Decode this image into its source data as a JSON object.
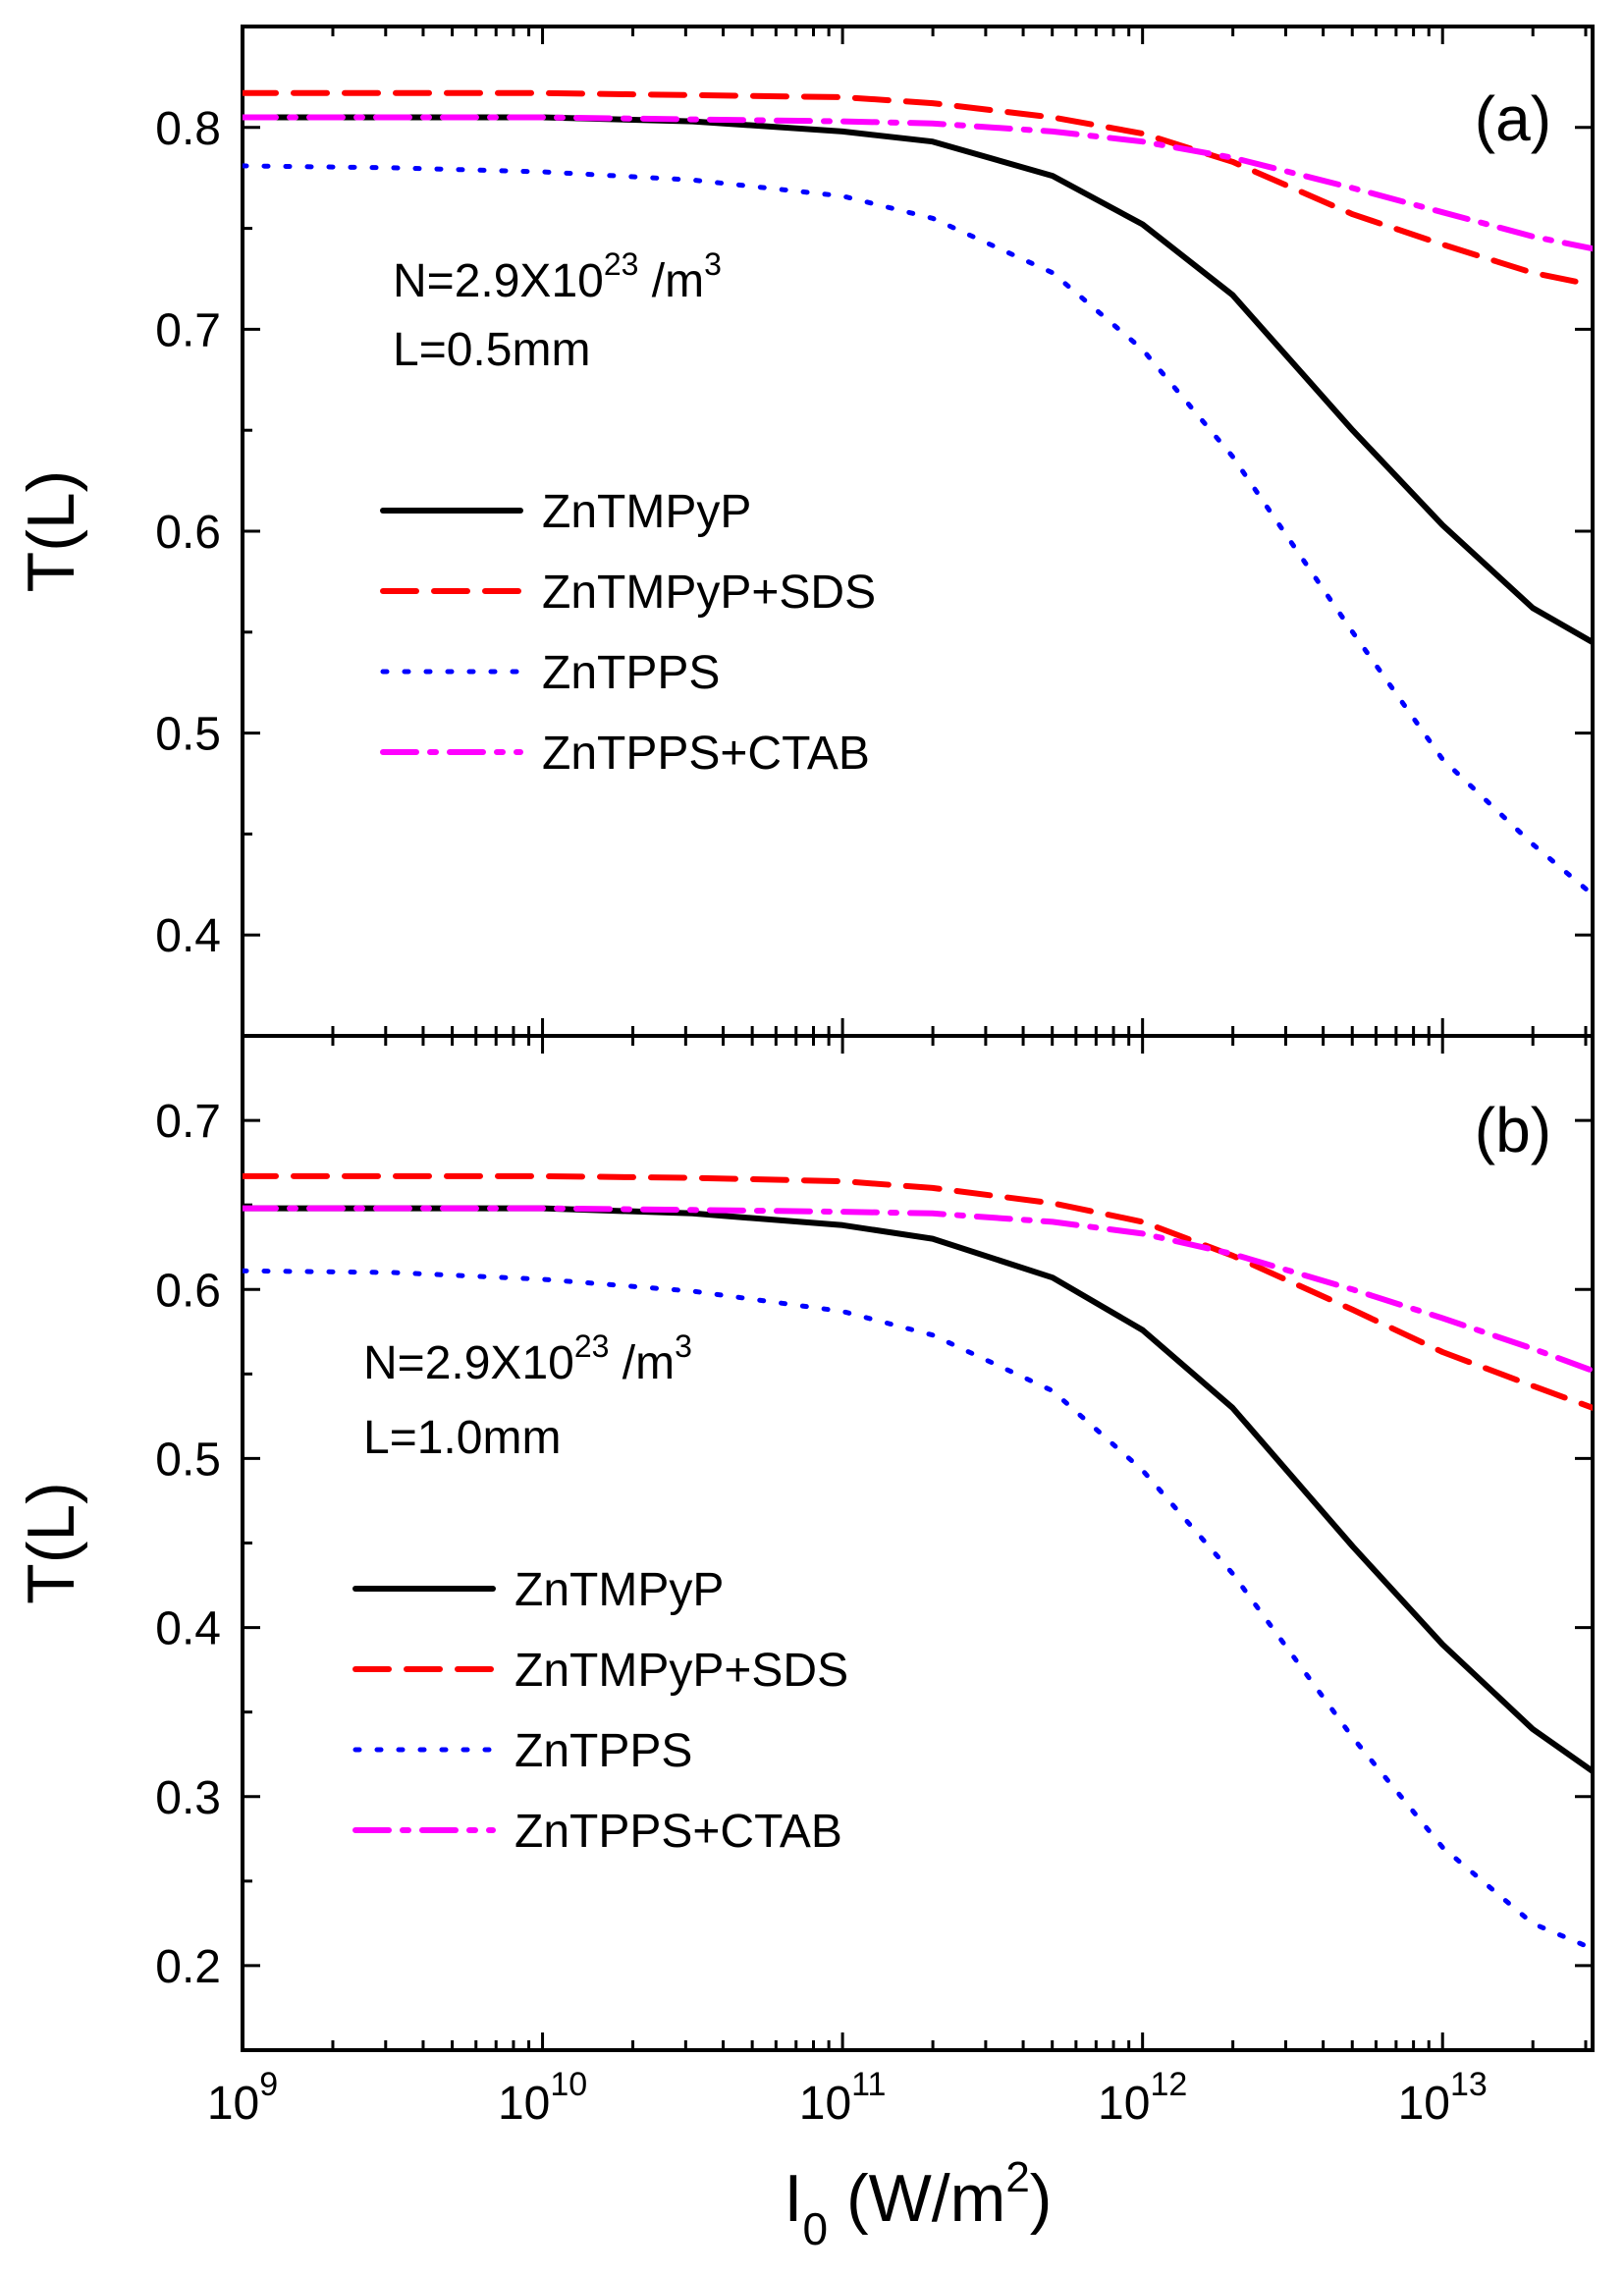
{
  "chart_data": {
    "type": "line",
    "xscale": "log",
    "xlabel": "I",
    "xlabel_sub": "0",
    "xlabel_unit_prefix": " (W/m",
    "xlabel_unit_sup": "2",
    "xlabel_unit_suffix": ")",
    "xlim_log10": [
      9,
      13.5
    ],
    "x_ticks": [
      {
        "base": "10",
        "exp": "9",
        "log10": 9
      },
      {
        "base": "10",
        "exp": "10",
        "log10": 10
      },
      {
        "base": "10",
        "exp": "11",
        "log10": 11
      },
      {
        "base": "10",
        "exp": "12",
        "log10": 12
      },
      {
        "base": "10",
        "exp": "13",
        "log10": 13
      }
    ],
    "series_styles": [
      {
        "name": "ZnTMPyP",
        "color": "#000000",
        "dash": "solid"
      },
      {
        "name": "ZnTMPyP+SDS",
        "color": "#ff0000",
        "dash": "dashed"
      },
      {
        "name": "ZnTPPS",
        "color": "#0000ff",
        "dash": "dotted"
      },
      {
        "name": "ZnTPPS+CTAB",
        "color": "#ff00ff",
        "dash": "dashdot"
      }
    ],
    "x_log10": [
      9,
      9.5,
      10,
      10.5,
      11,
      11.3,
      11.7,
      12,
      12.3,
      12.7,
      13,
      13.3,
      13.5
    ],
    "panels": [
      {
        "label": "(a)",
        "ylabel": "T(L)",
        "ylim": [
          0.35,
          0.85
        ],
        "yticks": [
          "0.4",
          "0.5",
          "0.6",
          "0.7",
          "0.8"
        ],
        "annotation_n_prefix": "N=2.9X10",
        "annotation_n_sup": "23",
        "annotation_n_unit": " /m",
        "annotation_n_unit_sup": "3",
        "annotation_l": "L=0.5mm",
        "series": [
          {
            "name": "ZnTMPyP",
            "values": [
              0.805,
              0.805,
              0.805,
              0.803,
              0.798,
              0.793,
              0.776,
              0.752,
              0.717,
              0.65,
              0.603,
              0.562,
              0.545
            ]
          },
          {
            "name": "ZnTMPyP+SDS",
            "values": [
              0.817,
              0.817,
              0.817,
              0.816,
              0.815,
              0.812,
              0.805,
              0.797,
              0.783,
              0.757,
              0.742,
              0.728,
              0.722
            ]
          },
          {
            "name": "ZnTPPS",
            "values": [
              0.781,
              0.78,
              0.778,
              0.774,
              0.766,
              0.755,
              0.728,
              0.69,
              0.637,
              0.55,
              0.487,
              0.445,
              0.42
            ]
          },
          {
            "name": "ZnTPPS+CTAB",
            "values": [
              0.805,
              0.805,
              0.805,
              0.804,
              0.803,
              0.802,
              0.798,
              0.793,
              0.785,
              0.77,
              0.758,
              0.746,
              0.74
            ]
          }
        ]
      },
      {
        "label": "(b)",
        "ylabel": "T(L)",
        "ylim": [
          0.15,
          0.75
        ],
        "yticks": [
          "0.2",
          "0.3",
          "0.4",
          "0.5",
          "0.6",
          "0.7"
        ],
        "annotation_n_prefix": "N=2.9X10",
        "annotation_n_sup": "23",
        "annotation_n_unit": " /m",
        "annotation_n_unit_sup": "3",
        "annotation_l": "L=1.0mm",
        "series": [
          {
            "name": "ZnTMPyP",
            "values": [
              0.648,
              0.648,
              0.648,
              0.645,
              0.638,
              0.63,
              0.607,
              0.576,
              0.53,
              0.448,
              0.39,
              0.34,
              0.315
            ]
          },
          {
            "name": "ZnTMPyP+SDS",
            "values": [
              0.667,
              0.667,
              0.667,
              0.666,
              0.664,
              0.66,
              0.651,
              0.64,
              0.62,
              0.588,
              0.563,
              0.543,
              0.53
            ]
          },
          {
            "name": "ZnTPPS",
            "values": [
              0.611,
              0.61,
              0.606,
              0.599,
              0.587,
              0.573,
              0.54,
              0.493,
              0.432,
              0.335,
              0.27,
              0.225,
              0.21
            ]
          },
          {
            "name": "ZnTPPS+CTAB",
            "values": [
              0.648,
              0.648,
              0.648,
              0.647,
              0.646,
              0.645,
              0.64,
              0.633,
              0.621,
              0.6,
              0.583,
              0.565,
              0.552
            ]
          }
        ]
      }
    ]
  }
}
